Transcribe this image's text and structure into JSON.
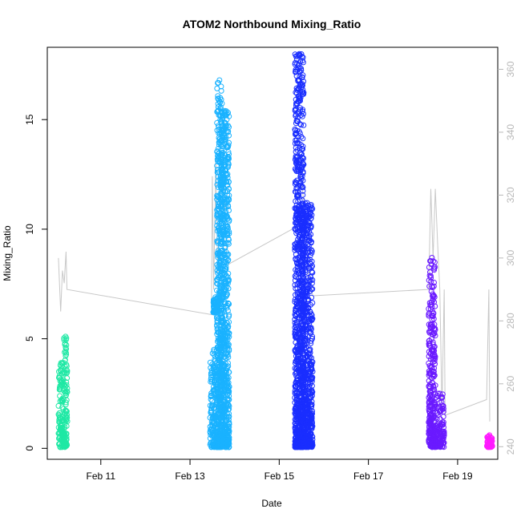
{
  "chart_data": {
    "type": "scatter",
    "title": "ATOM2 Northbound Mixing_Ratio",
    "xlabel": "Date",
    "ylabel": "Mixing_Ratio",
    "x_unit": "days since Feb 10 00:00",
    "xlim": [
      9.8,
      19.9
    ],
    "ylim": [
      -0.5,
      18.3
    ],
    "ylim_right": [
      236,
      367
    ],
    "x_ticks": [
      {
        "value": 11,
        "label": "Feb 11"
      },
      {
        "value": 13,
        "label": "Feb 13"
      },
      {
        "value": 15,
        "label": "Feb 15"
      },
      {
        "value": 17,
        "label": "Feb 17"
      },
      {
        "value": 19,
        "label": "Feb 19"
      }
    ],
    "y_ticks": [
      {
        "value": 0,
        "label": "0"
      },
      {
        "value": 5,
        "label": "5"
      },
      {
        "value": 10,
        "label": "10"
      },
      {
        "value": 15,
        "label": "15"
      }
    ],
    "y_ticks_right": [
      {
        "value": 240,
        "label": "240"
      },
      {
        "value": 260,
        "label": "260"
      },
      {
        "value": 280,
        "label": "280"
      },
      {
        "value": 300,
        "label": "300"
      },
      {
        "value": 320,
        "label": "320"
      },
      {
        "value": 340,
        "label": "340"
      },
      {
        "value": 360,
        "label": "360"
      }
    ],
    "grid": false,
    "legend": "none",
    "series": [
      {
        "color": "#1ee8a4",
        "clusters": [
          {
            "x_start": 10.05,
            "x_end": 10.17,
            "y_min": 0.05,
            "y_max": 3.9
          },
          {
            "x_start": 10.17,
            "x_end": 10.25,
            "y_min": 0.05,
            "y_max": 5.1
          }
        ]
      },
      {
        "color": "#1ab2ff",
        "clusters": [
          {
            "x_start": 13.45,
            "x_end": 13.62,
            "y_min": 0.05,
            "y_max": 4.5
          },
          {
            "x_start": 13.52,
            "x_end": 13.62,
            "y_min": 6.2,
            "y_max": 6.9
          },
          {
            "x_start": 13.6,
            "x_end": 13.72,
            "y_min": 0.05,
            "y_max": 16.8
          },
          {
            "x_start": 13.68,
            "x_end": 13.88,
            "y_min": 0.05,
            "y_max": 15.4
          }
        ]
      },
      {
        "color": "#1a2eff",
        "clusters": [
          {
            "x_start": 15.35,
            "x_end": 15.55,
            "y_min": 0.05,
            "y_max": 18.0
          },
          {
            "x_start": 15.5,
            "x_end": 15.75,
            "y_min": 0.05,
            "y_max": 11.2
          }
        ]
      },
      {
        "color": "#6a1aff",
        "clusters": [
          {
            "x_start": 18.35,
            "x_end": 18.5,
            "y_min": 0.05,
            "y_max": 8.7
          },
          {
            "x_start": 18.5,
            "x_end": 18.7,
            "y_min": 0.05,
            "y_max": 2.5
          }
        ]
      },
      {
        "color": "#ff1aff",
        "clusters": [
          {
            "x_start": 19.65,
            "x_end": 19.78,
            "y_min": 0.05,
            "y_max": 0.6
          }
        ]
      }
    ],
    "altitude_line": {
      "color": "#c8c8c8",
      "points": [
        [
          10.05,
          300
        ],
        [
          10.1,
          283
        ],
        [
          10.14,
          296
        ],
        [
          10.18,
          292
        ],
        [
          10.22,
          302
        ],
        [
          10.24,
          290
        ],
        [
          13.48,
          282
        ],
        [
          13.5,
          326
        ],
        [
          13.53,
          290
        ],
        [
          13.58,
          332
        ],
        [
          13.62,
          295
        ],
        [
          13.68,
          328
        ],
        [
          13.75,
          334
        ],
        [
          13.82,
          300
        ],
        [
          13.86,
          298
        ],
        [
          15.4,
          310
        ],
        [
          15.45,
          330
        ],
        [
          15.55,
          318
        ],
        [
          15.6,
          300
        ],
        [
          15.75,
          288
        ],
        [
          18.35,
          290
        ],
        [
          18.4,
          322
        ],
        [
          18.45,
          300
        ],
        [
          18.5,
          322
        ],
        [
          18.55,
          305
        ],
        [
          18.6,
          290
        ],
        [
          18.65,
          252
        ],
        [
          18.7,
          290
        ],
        [
          18.72,
          250
        ],
        [
          19.65,
          255
        ],
        [
          19.7,
          290
        ],
        [
          19.72,
          248
        ]
      ]
    }
  }
}
